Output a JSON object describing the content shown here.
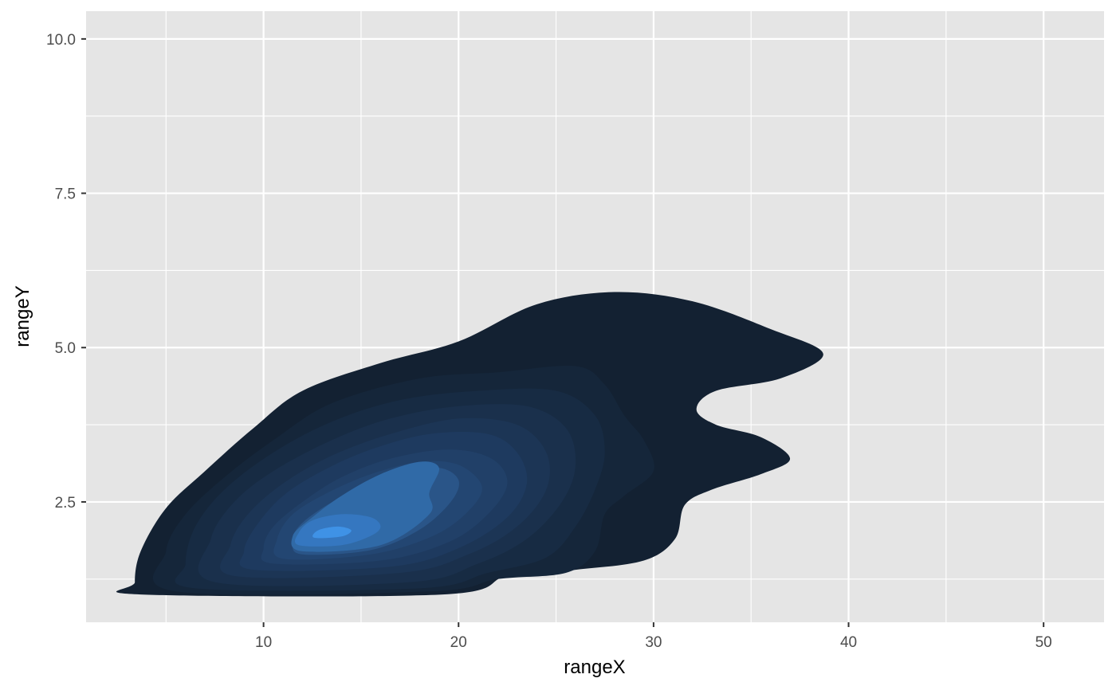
{
  "chart_data": {
    "type": "density2d_filled",
    "title": "",
    "xlabel": "rangeX",
    "ylabel": "rangeY",
    "xlim": [
      0.9,
      53.1
    ],
    "ylim": [
      0.55,
      10.45
    ],
    "x_ticks": [
      10,
      20,
      30,
      40,
      50
    ],
    "x_tick_labels": [
      "10",
      "20",
      "30",
      "40",
      "50"
    ],
    "y_ticks": [
      2.5,
      5.0,
      7.5,
      10.0
    ],
    "y_tick_labels": [
      "2.5",
      "5.0",
      "7.5",
      "10.0"
    ],
    "x_minor_ticks": [
      5,
      15,
      25,
      35,
      45
    ],
    "y_minor_ticks": [
      1.25,
      3.75,
      6.25,
      8.75
    ],
    "grid": true,
    "legend": "none",
    "colors": {
      "panel_background": "#e5e5e5",
      "grid": "#ffffff",
      "levels": [
        "#132132",
        "#15263a",
        "#172b43",
        "#1a304c",
        "#1c3555",
        "#1e3a5f",
        "#214068",
        "#234672",
        "#2a5588",
        "#306aa7",
        "#3577c0",
        "#3f92e6"
      ]
    },
    "density_levels": [
      {
        "level": 1,
        "points": [
          [
            3.7,
            1.0
          ],
          [
            19.2,
            1.0
          ],
          [
            22.5,
            1.3
          ],
          [
            26.0,
            1.4
          ],
          [
            29.5,
            1.55
          ],
          [
            31.1,
            1.9
          ],
          [
            31.6,
            2.45
          ],
          [
            33.0,
            2.7
          ],
          [
            35.5,
            2.95
          ],
          [
            37.0,
            3.2
          ],
          [
            35.5,
            3.55
          ],
          [
            33.2,
            3.75
          ],
          [
            32.2,
            4.0
          ],
          [
            33.2,
            4.3
          ],
          [
            36.5,
            4.5
          ],
          [
            38.7,
            4.9
          ],
          [
            36.0,
            5.3
          ],
          [
            32.0,
            5.75
          ],
          [
            28.0,
            5.9
          ],
          [
            24.0,
            5.7
          ],
          [
            20.0,
            5.1
          ],
          [
            16.0,
            4.75
          ],
          [
            12.0,
            4.3
          ],
          [
            9.5,
            3.7
          ],
          [
            7.0,
            3.0
          ],
          [
            5.0,
            2.4
          ],
          [
            3.7,
            1.7
          ],
          [
            3.4,
            1.2
          ]
        ]
      },
      {
        "level": 2,
        "points": [
          [
            5.5,
            1.05
          ],
          [
            18.5,
            1.05
          ],
          [
            22.0,
            1.25
          ],
          [
            25.5,
            1.35
          ],
          [
            27.0,
            1.7
          ],
          [
            27.5,
            2.3
          ],
          [
            28.5,
            2.6
          ],
          [
            30.0,
            3.0
          ],
          [
            29.5,
            3.5
          ],
          [
            28.5,
            3.9
          ],
          [
            27.5,
            4.4
          ],
          [
            26.0,
            4.7
          ],
          [
            22.0,
            4.6
          ],
          [
            18.0,
            4.5
          ],
          [
            13.5,
            4.1
          ],
          [
            10.5,
            3.5
          ],
          [
            8.0,
            2.9
          ],
          [
            6.0,
            2.3
          ],
          [
            5.0,
            1.7
          ]
        ]
      },
      {
        "level": 3,
        "points": [
          [
            6.5,
            1.1
          ],
          [
            18.0,
            1.1
          ],
          [
            21.5,
            1.35
          ],
          [
            24.5,
            1.6
          ],
          [
            26.0,
            2.1
          ],
          [
            27.0,
            2.7
          ],
          [
            27.5,
            3.3
          ],
          [
            27.0,
            3.9
          ],
          [
            25.0,
            4.3
          ],
          [
            21.0,
            4.3
          ],
          [
            17.0,
            4.15
          ],
          [
            13.5,
            3.8
          ],
          [
            10.5,
            3.3
          ],
          [
            8.0,
            2.7
          ],
          [
            6.5,
            2.1
          ],
          [
            6.0,
            1.5
          ]
        ]
      },
      {
        "level": 4,
        "points": [
          [
            7.5,
            1.2
          ],
          [
            17.5,
            1.2
          ],
          [
            21.0,
            1.5
          ],
          [
            23.5,
            1.9
          ],
          [
            25.3,
            2.5
          ],
          [
            26.0,
            3.1
          ],
          [
            25.5,
            3.7
          ],
          [
            23.5,
            4.05
          ],
          [
            20.0,
            4.05
          ],
          [
            16.5,
            3.85
          ],
          [
            13.5,
            3.5
          ],
          [
            10.5,
            3.0
          ],
          [
            8.5,
            2.5
          ],
          [
            7.3,
            1.9
          ]
        ]
      },
      {
        "level": 5,
        "points": [
          [
            8.5,
            1.3
          ],
          [
            17.0,
            1.35
          ],
          [
            20.5,
            1.65
          ],
          [
            23.0,
            2.1
          ],
          [
            24.5,
            2.7
          ],
          [
            24.5,
            3.3
          ],
          [
            23.0,
            3.75
          ],
          [
            20.0,
            3.85
          ],
          [
            16.5,
            3.6
          ],
          [
            13.5,
            3.25
          ],
          [
            11.0,
            2.8
          ],
          [
            9.2,
            2.3
          ],
          [
            8.3,
            1.8
          ]
        ]
      },
      {
        "level": 6,
        "points": [
          [
            9.5,
            1.4
          ],
          [
            16.5,
            1.45
          ],
          [
            20.0,
            1.75
          ],
          [
            22.5,
            2.25
          ],
          [
            23.5,
            2.8
          ],
          [
            23.0,
            3.3
          ],
          [
            21.5,
            3.6
          ],
          [
            18.5,
            3.6
          ],
          [
            15.5,
            3.35
          ],
          [
            13.0,
            3.0
          ],
          [
            11.0,
            2.6
          ],
          [
            9.6,
            2.1
          ],
          [
            9.0,
            1.7
          ]
        ]
      },
      {
        "level": 7,
        "points": [
          [
            10.5,
            1.5
          ],
          [
            16.0,
            1.55
          ],
          [
            19.5,
            1.85
          ],
          [
            21.5,
            2.3
          ],
          [
            22.5,
            2.8
          ],
          [
            21.7,
            3.2
          ],
          [
            19.5,
            3.35
          ],
          [
            16.5,
            3.2
          ],
          [
            14.0,
            2.9
          ],
          [
            12.0,
            2.5
          ],
          [
            10.5,
            2.1
          ],
          [
            10.0,
            1.75
          ]
        ]
      },
      {
        "level": 8,
        "points": [
          [
            11.0,
            1.58
          ],
          [
            15.5,
            1.65
          ],
          [
            18.7,
            1.95
          ],
          [
            20.5,
            2.35
          ],
          [
            21.2,
            2.75
          ],
          [
            20.0,
            3.1
          ],
          [
            18.0,
            3.15
          ],
          [
            15.5,
            2.95
          ],
          [
            13.3,
            2.65
          ],
          [
            11.5,
            2.3
          ],
          [
            10.7,
            1.9
          ]
        ]
      },
      {
        "level": 9,
        "points": [
          [
            12.0,
            1.65
          ],
          [
            15.5,
            1.72
          ],
          [
            18.0,
            2.05
          ],
          [
            19.6,
            2.5
          ],
          [
            20.0,
            2.85
          ],
          [
            19.0,
            3.05
          ],
          [
            17.0,
            2.95
          ],
          [
            14.8,
            2.7
          ],
          [
            13.0,
            2.4
          ],
          [
            11.8,
            2.1
          ],
          [
            11.5,
            1.85
          ]
        ]
      },
      {
        "level": 10,
        "points": [
          [
            12.0,
            1.7
          ],
          [
            16.0,
            1.8
          ],
          [
            18.5,
            2.3
          ],
          [
            18.5,
            2.65
          ],
          [
            19.0,
            3.05
          ],
          [
            18.0,
            3.15
          ],
          [
            16.0,
            2.95
          ],
          [
            14.0,
            2.6
          ],
          [
            12.5,
            2.25
          ],
          [
            11.5,
            1.95
          ]
        ]
      },
      {
        "level": 11,
        "points": [
          [
            11.8,
            1.8
          ],
          [
            14.0,
            1.8
          ],
          [
            15.5,
            1.95
          ],
          [
            16.0,
            2.1
          ],
          [
            15.5,
            2.25
          ],
          [
            14.0,
            2.3
          ],
          [
            12.5,
            2.2
          ],
          [
            11.8,
            2.0
          ]
        ]
      },
      {
        "level": 12,
        "points": [
          [
            12.6,
            1.92
          ],
          [
            14.0,
            1.94
          ],
          [
            14.5,
            2.04
          ],
          [
            13.8,
            2.1
          ],
          [
            12.8,
            2.04
          ]
        ]
      }
    ]
  }
}
